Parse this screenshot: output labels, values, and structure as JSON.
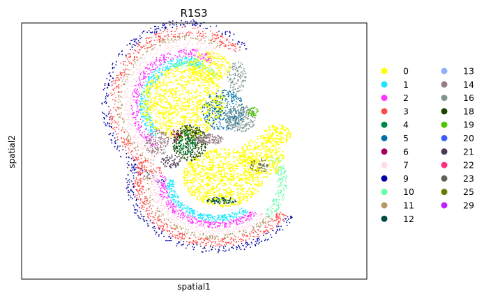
{
  "chart_data": {
    "type": "scatter",
    "title": "R1S3",
    "xlabel": "spatial1",
    "ylabel": "spatial2",
    "xticks": [],
    "yticks": [],
    "legend_placement": "right",
    "legend_columns": 2,
    "series": [
      {
        "name": "0",
        "color": "#ffff00"
      },
      {
        "name": "1",
        "color": "#1ce6ff"
      },
      {
        "name": "2",
        "color": "#ff34ff"
      },
      {
        "name": "3",
        "color": "#ff4a46"
      },
      {
        "name": "4",
        "color": "#008941"
      },
      {
        "name": "5",
        "color": "#006fa6"
      },
      {
        "name": "6",
        "color": "#a30059"
      },
      {
        "name": "7",
        "color": "#ffdbe5"
      },
      {
        "name": "9",
        "color": "#0000a6"
      },
      {
        "name": "10",
        "color": "#63ffac"
      },
      {
        "name": "11",
        "color": "#b79762"
      },
      {
        "name": "12",
        "color": "#004d43"
      },
      {
        "name": "13",
        "color": "#8fb0ff"
      },
      {
        "name": "14",
        "color": "#997d87"
      },
      {
        "name": "16",
        "color": "#809693"
      },
      {
        "name": "18",
        "color": "#1b4400"
      },
      {
        "name": "19",
        "color": "#4fc601"
      },
      {
        "name": "20",
        "color": "#3b5dff"
      },
      {
        "name": "21",
        "color": "#4a3b53"
      },
      {
        "name": "22",
        "color": "#ff2f80"
      },
      {
        "name": "23",
        "color": "#61615a"
      },
      {
        "name": "25",
        "color": "#6b7900"
      },
      {
        "name": "29",
        "color": "#bc23ff"
      }
    ]
  }
}
